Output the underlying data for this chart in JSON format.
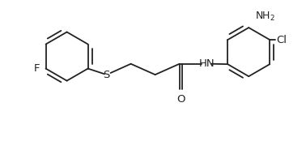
{
  "bg_color": "#ffffff",
  "line_color": "#222222",
  "figsize": [
    3.78,
    1.85
  ],
  "dpi": 100,
  "bond_lw": 1.3,
  "font_size": 9.0,
  "xlim": [
    0.0,
    7.8
  ],
  "ylim": [
    -1.2,
    3.2
  ]
}
